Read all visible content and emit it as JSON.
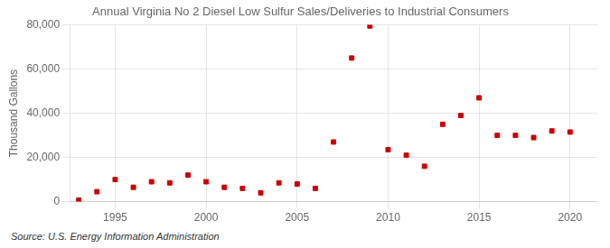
{
  "chart_data": {
    "type": "scatter",
    "title": "Annual Virginia No 2 Diesel Low Sulfur Sales/Deliveries to Industrial Consumers",
    "ylabel": "Thousand Gallons",
    "source": "Source: U.S. Energy Information Administration",
    "x": [
      1993,
      1994,
      1995,
      1996,
      1997,
      1998,
      1999,
      2000,
      2001,
      2002,
      2003,
      2004,
      2005,
      2006,
      2007,
      2008,
      2009,
      2010,
      2011,
      2012,
      2013,
      2014,
      2015,
      2016,
      2017,
      2018,
      2019,
      2020
    ],
    "values": [
      700,
      4500,
      10000,
      6500,
      9000,
      8500,
      12000,
      9000,
      6500,
      6000,
      4000,
      8500,
      8000,
      6000,
      27000,
      65000,
      79500,
      23500,
      21000,
      16000,
      35000,
      39000,
      47000,
      30000,
      30000,
      29000,
      32000,
      31500
    ],
    "color": "#cc0000",
    "marker": "square",
    "xlim": [
      1992.5,
      2021.5
    ],
    "ylim": [
      0,
      80000
    ],
    "xticks": [
      1995,
      2000,
      2005,
      2010,
      2015,
      2020
    ],
    "yticks": [
      0,
      {
        "value": 20000,
        "label": "20,000"
      },
      {
        "value": 40000,
        "label": "40,000"
      },
      {
        "value": 60000,
        "label": "60,000"
      },
      {
        "value": 80000,
        "label": "80,000"
      }
    ],
    "grid": true
  }
}
